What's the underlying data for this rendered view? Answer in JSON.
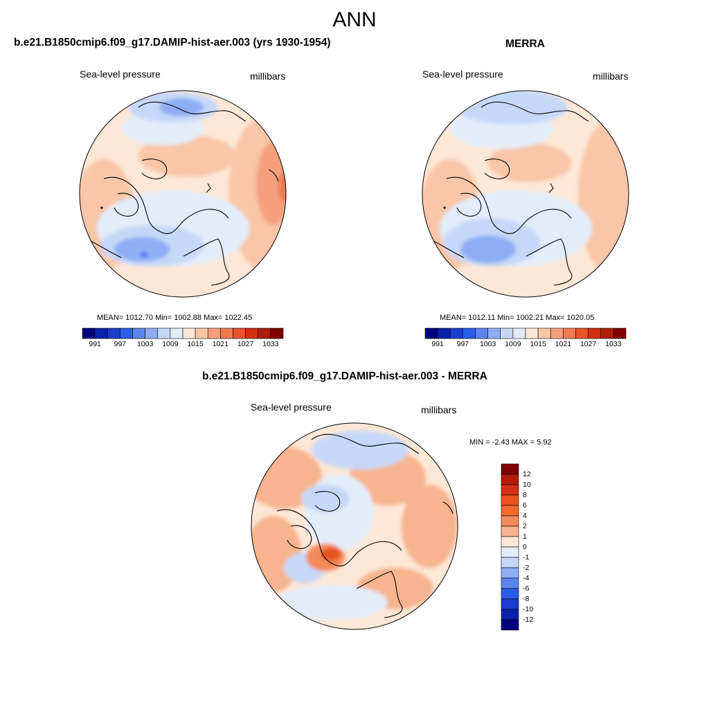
{
  "title": "ANN",
  "panels": {
    "model": {
      "title": "b.e21.B1850cmip6.f09_g17.DAMIP-hist-aer.003 (yrs 1930-1954)",
      "variable": "Sea-level pressure",
      "units": "millibars",
      "stats": "MEAN= 1012.70  Min= 1002.88  Max= 1022.45"
    },
    "obs": {
      "title": "MERRA",
      "variable": "Sea-level pressure",
      "units": "millibars",
      "stats": "MEAN= 1012.11  Min= 1002.21  Max= 1020.05"
    },
    "diff": {
      "title": "b.e21.B1850cmip6.f09_g17.DAMIP-hist-aer.003 - MERRA",
      "variable": "Sea-level pressure",
      "units": "millibars",
      "stats": "MIN =  -2.43 MAX =   5.92"
    }
  },
  "colorbar_abs": {
    "labels": [
      "991",
      "997",
      "1003",
      "1009",
      "1015",
      "1021",
      "1027",
      "1033"
    ],
    "colors": [
      "#00007f",
      "#0a22a8",
      "#1a3ecb",
      "#2b5ee8",
      "#5c85f0",
      "#8fadf5",
      "#c6d8f8",
      "#e3edfa",
      "#fde7d6",
      "#f9c6a8",
      "#f5a07c",
      "#f07a52",
      "#e8522c",
      "#d32f12",
      "#b11d08",
      "#800000"
    ]
  },
  "colorbar_diff": {
    "labels": [
      "12",
      "10",
      "8",
      "6",
      "4",
      "2",
      "1",
      "0",
      "-1",
      "-2",
      "-4",
      "-6",
      "-8",
      "-10",
      "-12"
    ],
    "colors": [
      "#800000",
      "#b11d08",
      "#d32f12",
      "#e8521f",
      "#f36a2e",
      "#f48a5c",
      "#f7b48f",
      "#fde7d6",
      "#e3edfa",
      "#c6d8f8",
      "#8fadf5",
      "#5c85f0",
      "#2b5ee8",
      "#1a3ecb",
      "#0a22a8",
      "#00007f"
    ]
  }
}
